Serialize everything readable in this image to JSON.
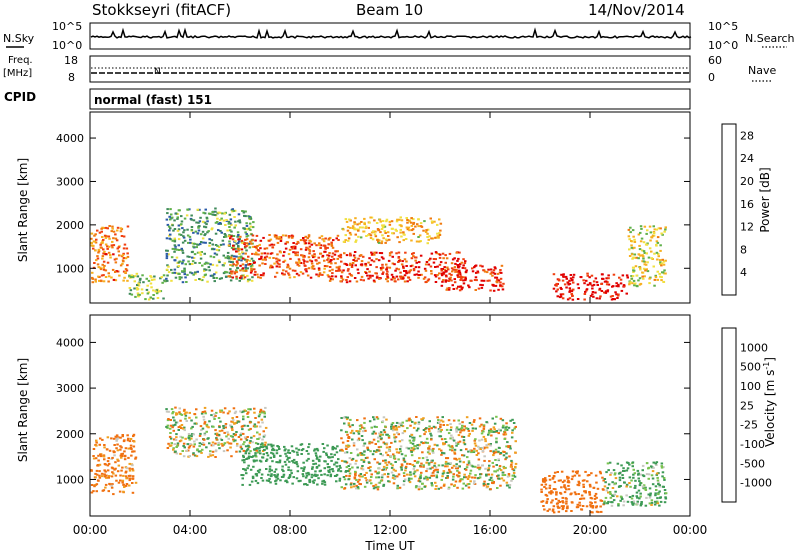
{
  "header": {
    "station": "Stokkseyri (fitACF)",
    "beam": "Beam 10",
    "date": "14/Nov/2014"
  },
  "noise_panel": {
    "left_label": "N.Sky",
    "left_ticks": [
      "10^5",
      "10^0"
    ],
    "right_label": "N.Search",
    "right_ticks": [
      "10^5",
      "10^0"
    ]
  },
  "freq_panel": {
    "left_label_1": "Freq.",
    "left_label_2": "[MHz]",
    "left_ticks": [
      "18",
      "8"
    ],
    "right_label": "Nave",
    "right_ticks": [
      "60",
      "0"
    ],
    "marker": "N"
  },
  "cpid": {
    "label": "CPID",
    "value": "normal (fast) 151"
  },
  "colors": {
    "power_scale": [
      "#1f2bff",
      "#2a5aa8",
      "#3f8a5a",
      "#5fb04a",
      "#f0e040",
      "#f7b020",
      "#f07a10",
      "#f04010",
      "#e00000"
    ],
    "velocity_scale": [
      "#2040c0",
      "#2f6fa8",
      "#3d9a55",
      "#79c34f",
      "#c8c8c0",
      "#f0a020",
      "#f07010",
      "#f03010",
      "#e00000"
    ]
  },
  "chart_data": [
    {
      "type": "heatmap",
      "title": "Power",
      "ylabel": "Slant Range [km]",
      "xlabel": "Time UT",
      "x_ticks": [
        "00:00",
        "04:00",
        "08:00",
        "12:00",
        "16:00",
        "20:00",
        "00:00"
      ],
      "y_ticks": [
        "1000",
        "2000",
        "3000",
        "4000"
      ],
      "ylim": [
        200,
        4600
      ],
      "colorbar": {
        "label": "Power [dB]",
        "ticks": [
          "4",
          "8",
          "12",
          "16",
          "20",
          "24",
          "28"
        ],
        "range": [
          0,
          30
        ]
      },
      "regions": [
        {
          "t": [
            0.0,
            1.5
          ],
          "range": [
            700,
            2000
          ],
          "value": 22
        },
        {
          "t": [
            1.5,
            3.0
          ],
          "range": [
            300,
            900
          ],
          "value": 12
        },
        {
          "t": [
            3.0,
            6.5
          ],
          "range": [
            700,
            2400
          ],
          "value": 10
        },
        {
          "t": [
            5.5,
            10.0
          ],
          "range": [
            800,
            1800
          ],
          "value": 24
        },
        {
          "t": [
            9.5,
            15.0
          ],
          "range": [
            700,
            1400
          ],
          "value": 26
        },
        {
          "t": [
            10.0,
            14.0
          ],
          "range": [
            1600,
            2200
          ],
          "value": 18
        },
        {
          "t": [
            14.0,
            16.5
          ],
          "range": [
            500,
            1100
          ],
          "value": 27
        },
        {
          "t": [
            18.5,
            21.5
          ],
          "range": [
            300,
            900
          ],
          "value": 29
        },
        {
          "t": [
            21.5,
            23.0
          ],
          "range": [
            600,
            2000
          ],
          "value": 16
        }
      ]
    },
    {
      "type": "heatmap",
      "title": "Velocity",
      "ylabel": "Slant Range [km]",
      "xlabel": "Time UT",
      "x_ticks": [
        "00:00",
        "04:00",
        "08:00",
        "12:00",
        "16:00",
        "20:00",
        "00:00"
      ],
      "y_ticks": [
        "1000",
        "2000",
        "3000",
        "4000"
      ],
      "ylim": [
        200,
        4600
      ],
      "colorbar": {
        "label": "Velocity [m s^-1]",
        "ticks": [
          "1000",
          "500",
          "100",
          "25",
          "-25",
          "-100",
          "-500",
          "-1000"
        ]
      },
      "regions": [
        {
          "t": [
            0.0,
            1.8
          ],
          "range": [
            700,
            2000
          ],
          "value": -200
        },
        {
          "t": [
            3.0,
            7.0
          ],
          "range": [
            1500,
            2600
          ],
          "value": 0
        },
        {
          "t": [
            6.0,
            10.0
          ],
          "range": [
            900,
            1800
          ],
          "value": 300
        },
        {
          "t": [
            10.0,
            17.0
          ],
          "range": [
            800,
            2400
          ],
          "value": 0
        },
        {
          "t": [
            18.0,
            20.5
          ],
          "range": [
            300,
            1200
          ],
          "value": -300
        },
        {
          "t": [
            20.5,
            23.0
          ],
          "range": [
            400,
            1400
          ],
          "value": 150
        }
      ]
    }
  ]
}
